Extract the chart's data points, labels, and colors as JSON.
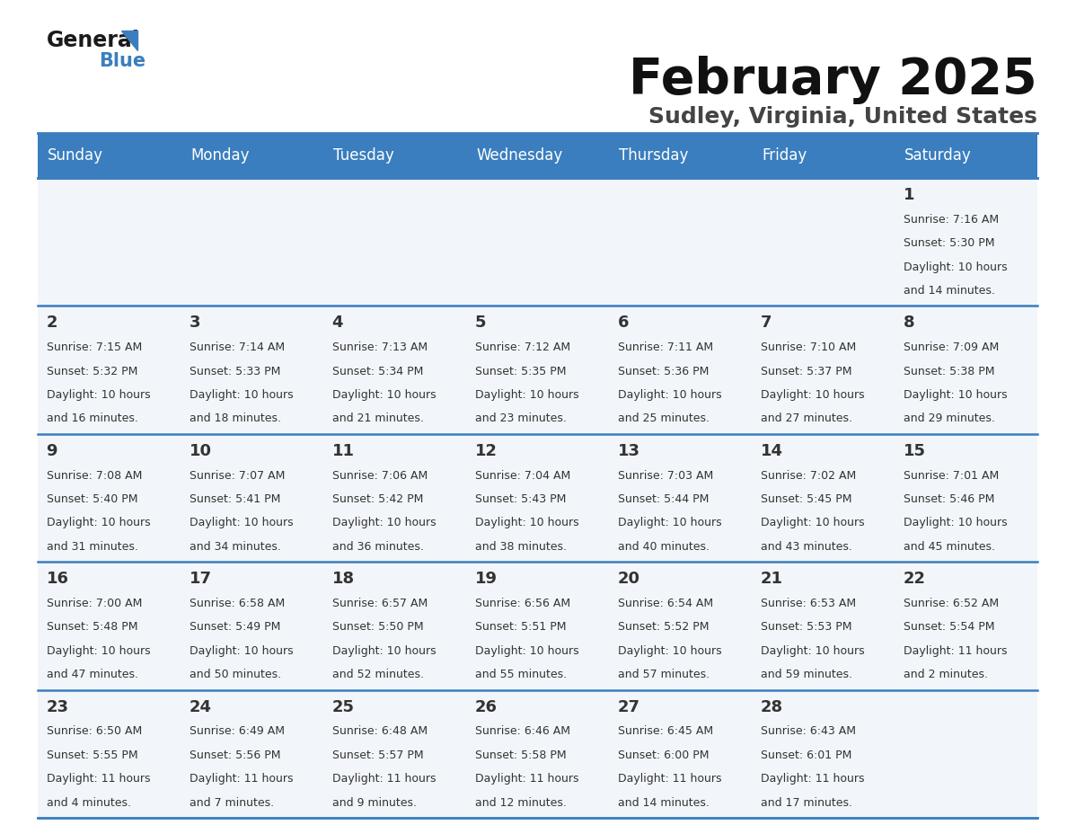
{
  "title": "February 2025",
  "subtitle": "Sudley, Virginia, United States",
  "header_bg": "#3a7ebf",
  "header_text": "#ffffff",
  "cell_bg": "#f2f6fa",
  "day_number_color": "#333333",
  "text_color": "#333333",
  "line_color": "#3a7ebf",
  "days_of_week": [
    "Sunday",
    "Monday",
    "Tuesday",
    "Wednesday",
    "Thursday",
    "Friday",
    "Saturday"
  ],
  "calendar_data": [
    [
      {
        "day": null,
        "sunrise": null,
        "sunset": null,
        "daylight_line1": null,
        "daylight_line2": null
      },
      {
        "day": null,
        "sunrise": null,
        "sunset": null,
        "daylight_line1": null,
        "daylight_line2": null
      },
      {
        "day": null,
        "sunrise": null,
        "sunset": null,
        "daylight_line1": null,
        "daylight_line2": null
      },
      {
        "day": null,
        "sunrise": null,
        "sunset": null,
        "daylight_line1": null,
        "daylight_line2": null
      },
      {
        "day": null,
        "sunrise": null,
        "sunset": null,
        "daylight_line1": null,
        "daylight_line2": null
      },
      {
        "day": null,
        "sunrise": null,
        "sunset": null,
        "daylight_line1": null,
        "daylight_line2": null
      },
      {
        "day": 1,
        "sunrise": "7:16 AM",
        "sunset": "5:30 PM",
        "daylight_line1": "Daylight: 10 hours",
        "daylight_line2": "and 14 minutes."
      }
    ],
    [
      {
        "day": 2,
        "sunrise": "7:15 AM",
        "sunset": "5:32 PM",
        "daylight_line1": "Daylight: 10 hours",
        "daylight_line2": "and 16 minutes."
      },
      {
        "day": 3,
        "sunrise": "7:14 AM",
        "sunset": "5:33 PM",
        "daylight_line1": "Daylight: 10 hours",
        "daylight_line2": "and 18 minutes."
      },
      {
        "day": 4,
        "sunrise": "7:13 AM",
        "sunset": "5:34 PM",
        "daylight_line1": "Daylight: 10 hours",
        "daylight_line2": "and 21 minutes."
      },
      {
        "day": 5,
        "sunrise": "7:12 AM",
        "sunset": "5:35 PM",
        "daylight_line1": "Daylight: 10 hours",
        "daylight_line2": "and 23 minutes."
      },
      {
        "day": 6,
        "sunrise": "7:11 AM",
        "sunset": "5:36 PM",
        "daylight_line1": "Daylight: 10 hours",
        "daylight_line2": "and 25 minutes."
      },
      {
        "day": 7,
        "sunrise": "7:10 AM",
        "sunset": "5:37 PM",
        "daylight_line1": "Daylight: 10 hours",
        "daylight_line2": "and 27 minutes."
      },
      {
        "day": 8,
        "sunrise": "7:09 AM",
        "sunset": "5:38 PM",
        "daylight_line1": "Daylight: 10 hours",
        "daylight_line2": "and 29 minutes."
      }
    ],
    [
      {
        "day": 9,
        "sunrise": "7:08 AM",
        "sunset": "5:40 PM",
        "daylight_line1": "Daylight: 10 hours",
        "daylight_line2": "and 31 minutes."
      },
      {
        "day": 10,
        "sunrise": "7:07 AM",
        "sunset": "5:41 PM",
        "daylight_line1": "Daylight: 10 hours",
        "daylight_line2": "and 34 minutes."
      },
      {
        "day": 11,
        "sunrise": "7:06 AM",
        "sunset": "5:42 PM",
        "daylight_line1": "Daylight: 10 hours",
        "daylight_line2": "and 36 minutes."
      },
      {
        "day": 12,
        "sunrise": "7:04 AM",
        "sunset": "5:43 PM",
        "daylight_line1": "Daylight: 10 hours",
        "daylight_line2": "and 38 minutes."
      },
      {
        "day": 13,
        "sunrise": "7:03 AM",
        "sunset": "5:44 PM",
        "daylight_line1": "Daylight: 10 hours",
        "daylight_line2": "and 40 minutes."
      },
      {
        "day": 14,
        "sunrise": "7:02 AM",
        "sunset": "5:45 PM",
        "daylight_line1": "Daylight: 10 hours",
        "daylight_line2": "and 43 minutes."
      },
      {
        "day": 15,
        "sunrise": "7:01 AM",
        "sunset": "5:46 PM",
        "daylight_line1": "Daylight: 10 hours",
        "daylight_line2": "and 45 minutes."
      }
    ],
    [
      {
        "day": 16,
        "sunrise": "7:00 AM",
        "sunset": "5:48 PM",
        "daylight_line1": "Daylight: 10 hours",
        "daylight_line2": "and 47 minutes."
      },
      {
        "day": 17,
        "sunrise": "6:58 AM",
        "sunset": "5:49 PM",
        "daylight_line1": "Daylight: 10 hours",
        "daylight_line2": "and 50 minutes."
      },
      {
        "day": 18,
        "sunrise": "6:57 AM",
        "sunset": "5:50 PM",
        "daylight_line1": "Daylight: 10 hours",
        "daylight_line2": "and 52 minutes."
      },
      {
        "day": 19,
        "sunrise": "6:56 AM",
        "sunset": "5:51 PM",
        "daylight_line1": "Daylight: 10 hours",
        "daylight_line2": "and 55 minutes."
      },
      {
        "day": 20,
        "sunrise": "6:54 AM",
        "sunset": "5:52 PM",
        "daylight_line1": "Daylight: 10 hours",
        "daylight_line2": "and 57 minutes."
      },
      {
        "day": 21,
        "sunrise": "6:53 AM",
        "sunset": "5:53 PM",
        "daylight_line1": "Daylight: 10 hours",
        "daylight_line2": "and 59 minutes."
      },
      {
        "day": 22,
        "sunrise": "6:52 AM",
        "sunset": "5:54 PM",
        "daylight_line1": "Daylight: 11 hours",
        "daylight_line2": "and 2 minutes."
      }
    ],
    [
      {
        "day": 23,
        "sunrise": "6:50 AM",
        "sunset": "5:55 PM",
        "daylight_line1": "Daylight: 11 hours",
        "daylight_line2": "and 4 minutes."
      },
      {
        "day": 24,
        "sunrise": "6:49 AM",
        "sunset": "5:56 PM",
        "daylight_line1": "Daylight: 11 hours",
        "daylight_line2": "and 7 minutes."
      },
      {
        "day": 25,
        "sunrise": "6:48 AM",
        "sunset": "5:57 PM",
        "daylight_line1": "Daylight: 11 hours",
        "daylight_line2": "and 9 minutes."
      },
      {
        "day": 26,
        "sunrise": "6:46 AM",
        "sunset": "5:58 PM",
        "daylight_line1": "Daylight: 11 hours",
        "daylight_line2": "and 12 minutes."
      },
      {
        "day": 27,
        "sunrise": "6:45 AM",
        "sunset": "6:00 PM",
        "daylight_line1": "Daylight: 11 hours",
        "daylight_line2": "and 14 minutes."
      },
      {
        "day": 28,
        "sunrise": "6:43 AM",
        "sunset": "6:01 PM",
        "daylight_line1": "Daylight: 11 hours",
        "daylight_line2": "and 17 minutes."
      },
      {
        "day": null,
        "sunrise": null,
        "sunset": null,
        "daylight_line1": null,
        "daylight_line2": null
      }
    ]
  ],
  "logo_general_color": "#1a1a1a",
  "logo_blue_color": "#3a7ebf",
  "logo_triangle_color": "#3a7ebf",
  "title_fontsize": 40,
  "subtitle_fontsize": 18,
  "header_fontsize": 12,
  "day_num_fontsize": 13,
  "cell_text_fontsize": 9
}
